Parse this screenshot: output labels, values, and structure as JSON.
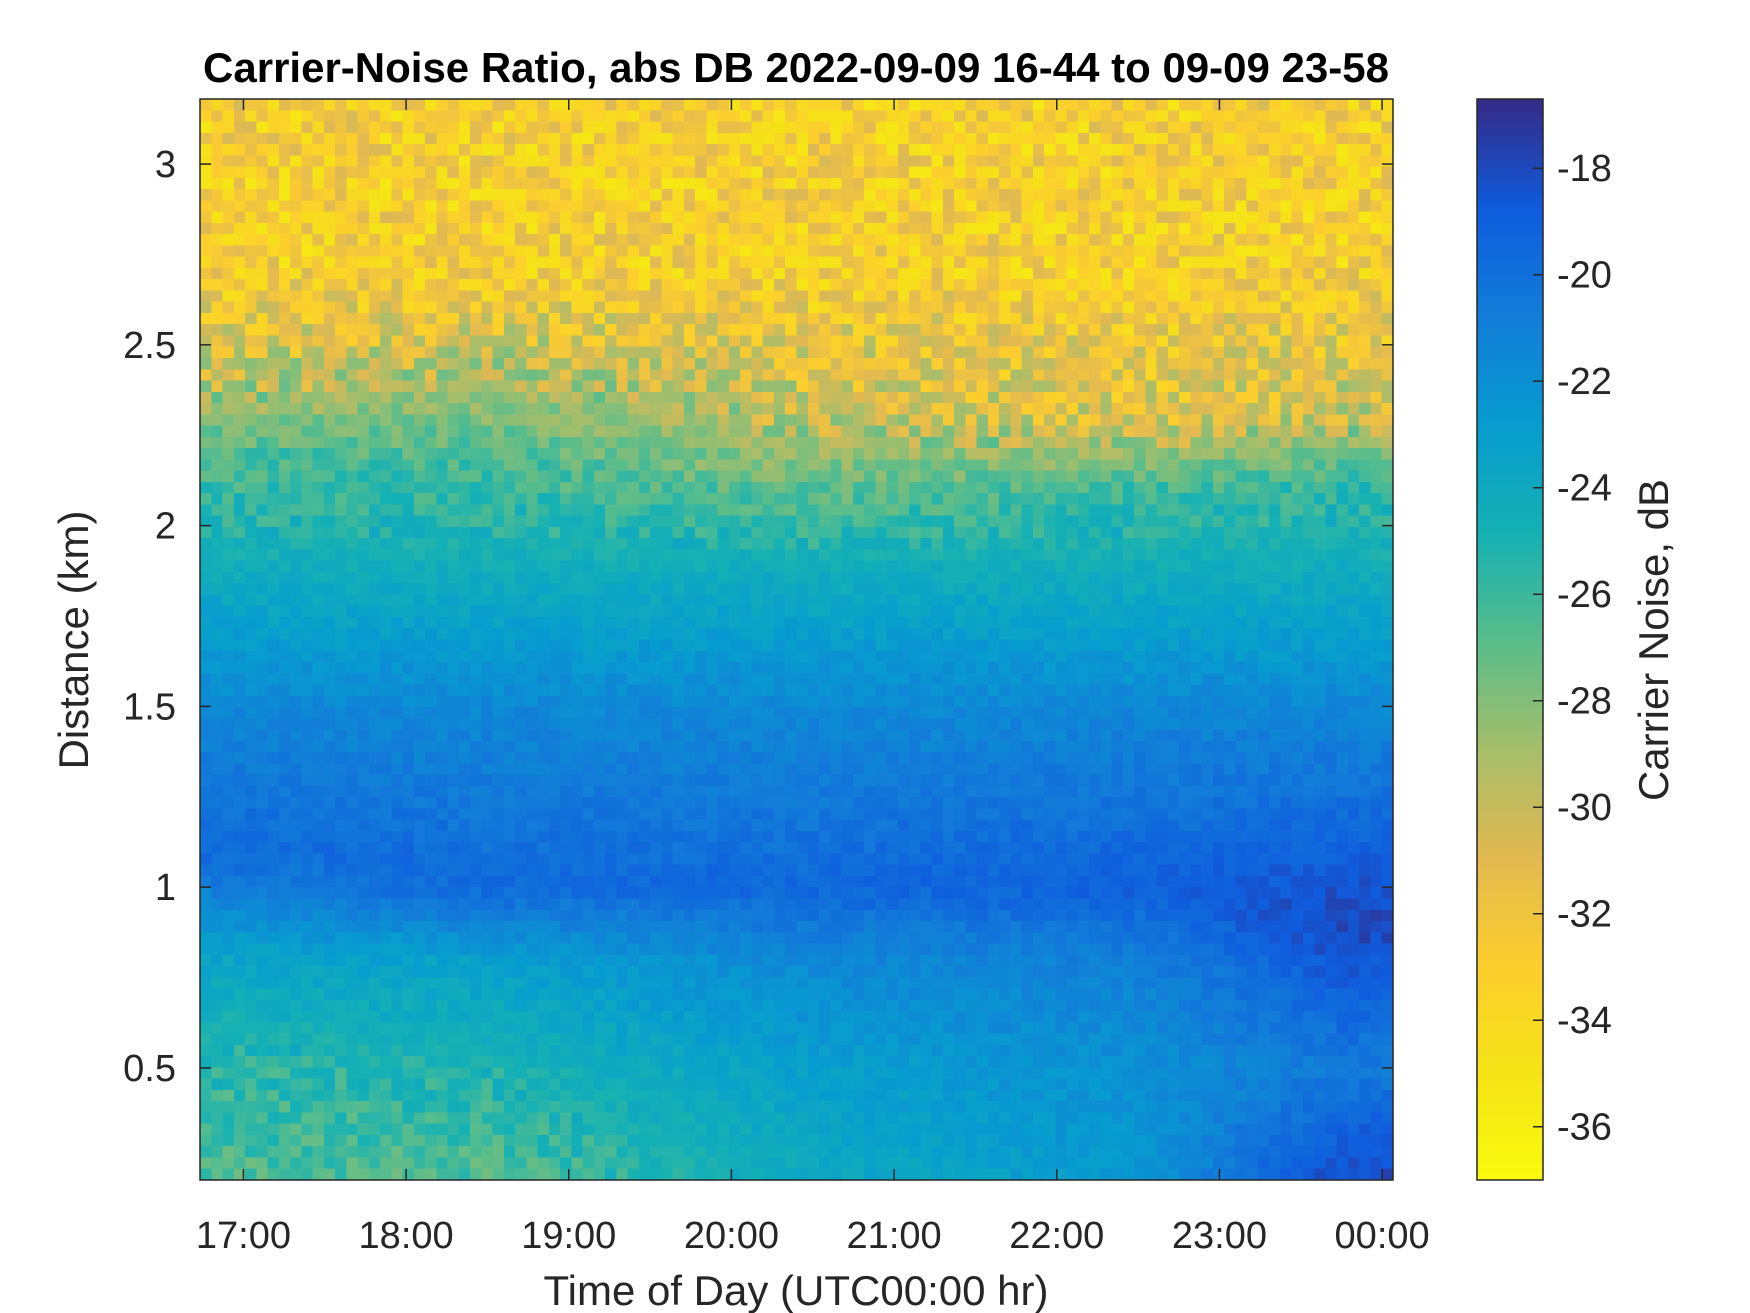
{
  "chart_data": {
    "type": "heatmap",
    "title": "Carrier-Noise Ratio, abs DB 2022-09-09 16-44 to 09-09 23-58",
    "xlabel": "Time of Day (UTC00:00 hr)",
    "ylabel": "Distance (km)",
    "colorbar_label": "Carrier Noise, dB",
    "colormap": "parula-reversed",
    "x_range": [
      "16:44",
      "23:58"
    ],
    "xlim_hours": [
      16.733,
      24.067
    ],
    "ylim": [
      0.19,
      3.18
    ],
    "clim": [
      -37,
      -16.7
    ],
    "x_ticks": [
      {
        "value": 17,
        "label": "17:00"
      },
      {
        "value": 18,
        "label": "18:00"
      },
      {
        "value": 19,
        "label": "19:00"
      },
      {
        "value": 20,
        "label": "20:00"
      },
      {
        "value": 21,
        "label": "21:00"
      },
      {
        "value": 22,
        "label": "22:00"
      },
      {
        "value": 23,
        "label": "23:00"
      },
      {
        "value": 24,
        "label": "00:00"
      }
    ],
    "y_ticks": [
      {
        "value": 0.5,
        "label": "0.5"
      },
      {
        "value": 1,
        "label": "1"
      },
      {
        "value": 1.5,
        "label": "1.5"
      },
      {
        "value": 2,
        "label": "2"
      },
      {
        "value": 2.5,
        "label": "2.5"
      },
      {
        "value": 3,
        "label": "3"
      }
    ],
    "colorbar_ticks": [
      {
        "value": -18,
        "label": "-18"
      },
      {
        "value": -20,
        "label": "-20"
      },
      {
        "value": -22,
        "label": "-22"
      },
      {
        "value": -24,
        "label": "-24"
      },
      {
        "value": -26,
        "label": "-26"
      },
      {
        "value": -28,
        "label": "-28"
      },
      {
        "value": -30,
        "label": "-30"
      },
      {
        "value": -32,
        "label": "-32"
      },
      {
        "value": -34,
        "label": "-34"
      },
      {
        "value": -36,
        "label": "-36"
      }
    ],
    "profile_times_hours": [
      16.75,
      17.5,
      18.5,
      19.5,
      20.5,
      21.5,
      22.5,
      23.5,
      24.0
    ],
    "profiles": [
      {
        "time": "16:45",
        "distance_km": [
          0.2,
          0.5,
          0.8,
          1.1,
          1.5,
          1.9,
          2.2,
          2.4,
          2.7,
          3.1
        ],
        "cnr_db": [
          -26.5,
          -25.5,
          -23.5,
          -19.5,
          -21.5,
          -24.5,
          -26.5,
          -30,
          -33,
          -33
        ]
      },
      {
        "time": "18:30",
        "distance_km": [
          0.2,
          0.5,
          0.8,
          1.0,
          1.5,
          1.9,
          2.2,
          2.4,
          2.7,
          3.1
        ],
        "cnr_db": [
          -26.5,
          -25,
          -23,
          -19.5,
          -21.5,
          -24.5,
          -26.5,
          -29,
          -33,
          -33
        ]
      },
      {
        "time": "20:30",
        "distance_km": [
          0.2,
          0.5,
          0.8,
          1.0,
          1.5,
          1.9,
          2.1,
          2.3,
          2.7,
          3.1
        ],
        "cnr_db": [
          -24,
          -23,
          -21.5,
          -19.5,
          -21.5,
          -24.5,
          -27,
          -30,
          -33,
          -33
        ]
      },
      {
        "time": "22:30",
        "distance_km": [
          0.2,
          0.5,
          0.8,
          1.0,
          1.5,
          1.9,
          2.1,
          2.3,
          2.7,
          3.1
        ],
        "cnr_db": [
          -22.5,
          -22,
          -21,
          -19,
          -21.5,
          -24.5,
          -26,
          -31,
          -33,
          -33
        ]
      },
      {
        "time": "23:45",
        "distance_km": [
          0.2,
          0.5,
          0.8,
          0.9,
          1.5,
          1.9,
          2.1,
          2.3,
          2.7,
          3.1
        ],
        "cnr_db": [
          -18,
          -20.5,
          -18.5,
          -17.8,
          -21.5,
          -24.5,
          -25.5,
          -30,
          -33,
          -33
        ]
      }
    ],
    "features": {
      "max_signal_layer_km_start": 1.1,
      "max_signal_layer_km_end": 0.9,
      "noise_floor_onset_km_start": 2.4,
      "noise_floor_onset_km_end": 2.28
    },
    "grid": false
  }
}
